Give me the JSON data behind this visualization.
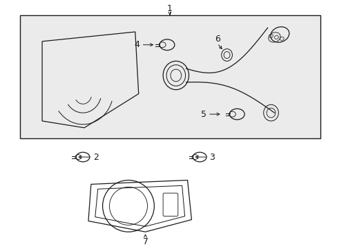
{
  "background_color": "#ffffff",
  "box_bg": "#e8e8e8",
  "line_color": "#1a1a1a",
  "label_color": "#000000",
  "font_size_label": 9
}
